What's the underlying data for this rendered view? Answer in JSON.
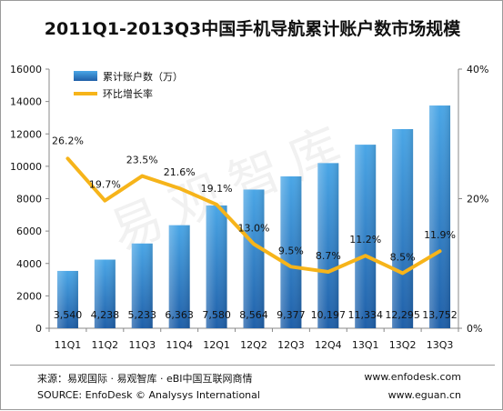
{
  "title": "2011Q1-2013Q3中国手机导航累计账户数市场规模",
  "watermark": "易观智库",
  "footer": {
    "source_cn": "来源：易观国际 · 易观智库 · eBI中国互联网商情",
    "source_en": "SOURCE: EnfoDesk © Analysys International",
    "url1": "www.enfodesk.com",
    "url2": "www.eguan.cn"
  },
  "colors": {
    "bar_top": "#4aa6e6",
    "bar_bottom": "#1f5fa8",
    "line": "#f6b41a",
    "axis": "#888888",
    "text": "#111111"
  },
  "chart_data": {
    "type": "bar",
    "categories": [
      "11Q1",
      "11Q2",
      "11Q3",
      "11Q4",
      "12Q1",
      "12Q2",
      "12Q3",
      "12Q4",
      "13Q1",
      "13Q2",
      "13Q3"
    ],
    "series": [
      {
        "name": "累计账户数（万）",
        "type": "bar",
        "axis": "left",
        "values": [
          3540,
          4238,
          5233,
          6363,
          7580,
          8564,
          9377,
          10197,
          11334,
          12295,
          13752
        ],
        "labels": [
          "3,540",
          "4,238",
          "5,233",
          "6,363",
          "7,580",
          "8,564",
          "9,377",
          "10,197",
          "11,334",
          "12,295",
          "13,752"
        ]
      },
      {
        "name": "环比增长率",
        "type": "line",
        "axis": "right",
        "values": [
          26.2,
          19.7,
          23.5,
          21.6,
          19.1,
          13.0,
          9.5,
          8.7,
          11.2,
          8.5,
          11.9
        ],
        "labels": [
          "26.2%",
          "19.7%",
          "23.5%",
          "21.6%",
          "19.1%",
          "13.0%",
          "9.5%",
          "8.7%",
          "11.2%",
          "8.5%",
          "11.9%"
        ]
      }
    ],
    "y_left": {
      "min": 0,
      "max": 16000,
      "ticks": [
        "0",
        "2000",
        "4000",
        "6000",
        "8000",
        "10000",
        "12000",
        "14000",
        "16000"
      ]
    },
    "y_right": {
      "min": 0,
      "max": 40,
      "ticks": [
        "0%",
        "20%",
        "40%"
      ]
    },
    "legend_position": "top-left",
    "grid": false
  }
}
